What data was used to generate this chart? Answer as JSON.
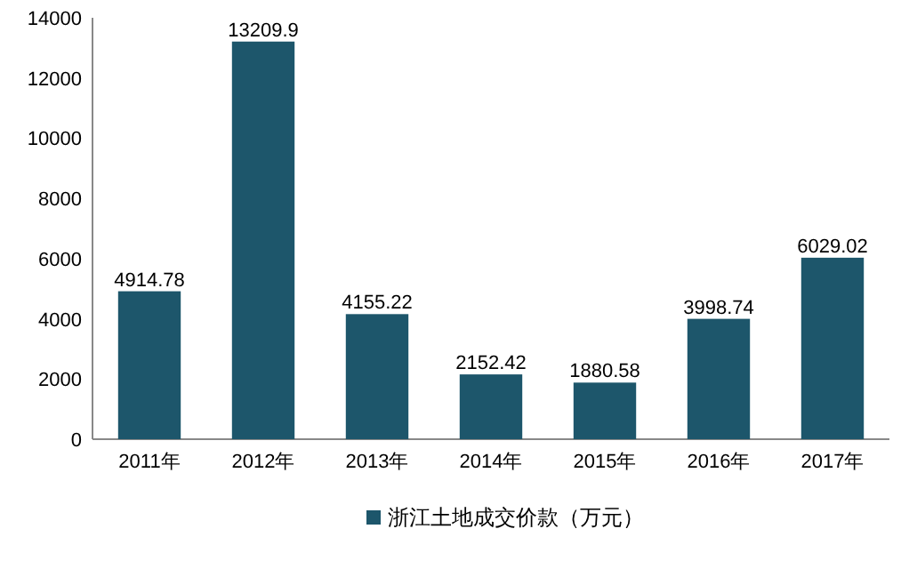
{
  "chart_data": {
    "type": "bar",
    "categories": [
      "2011年",
      "2012年",
      "2013年",
      "2014年",
      "2015年",
      "2016年",
      "2017年"
    ],
    "series": [
      {
        "name": "浙江土地成交价款（万元）",
        "color": "#1d566b",
        "values": [
          4914.78,
          13209.9,
          4155.22,
          2152.42,
          1880.58,
          3998.74,
          6029.02
        ]
      }
    ],
    "ylim": [
      0,
      14000
    ],
    "yticks": [
      0,
      2000,
      4000,
      6000,
      8000,
      10000,
      12000,
      14000
    ],
    "data_labels": true,
    "grid": false,
    "legend": "bottom"
  }
}
